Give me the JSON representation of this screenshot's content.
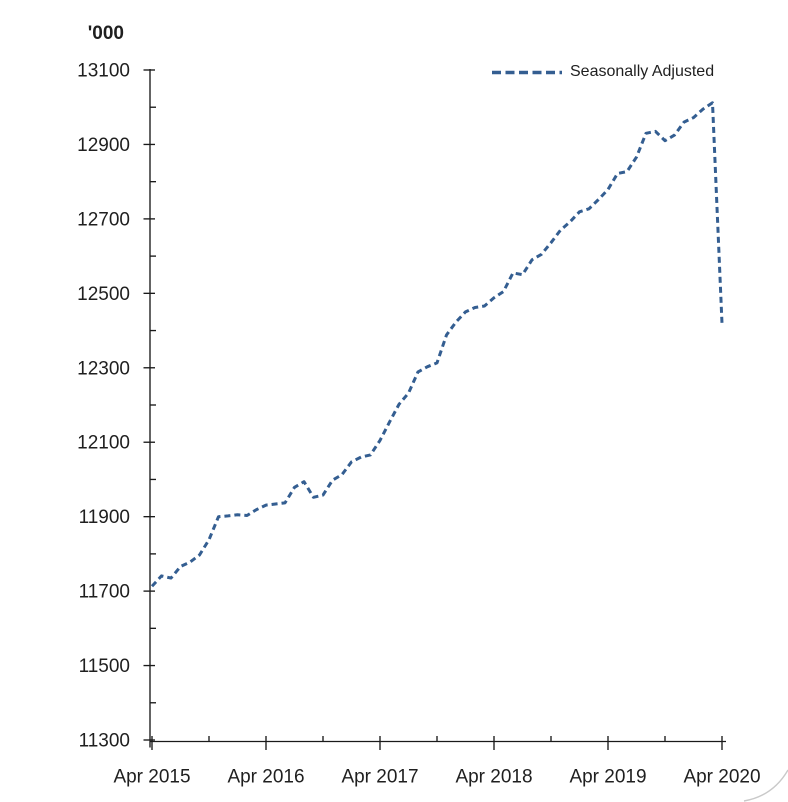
{
  "page": {
    "background": "#ffffff"
  },
  "style": {
    "series_color": "#345E91",
    "axis_color": "#1a1a1a",
    "text_color": "#1f1f1f",
    "corner_artifact_color": "#c9c9c9"
  },
  "chart_data": {
    "type": "line",
    "title": "",
    "unit_label": "'000",
    "xlabel": "",
    "ylabel": "'000",
    "ylim": [
      11300,
      13100
    ],
    "y_major_step": 200,
    "y_minor_step": 100,
    "y_tick_labels": [
      "11300",
      "11500",
      "11700",
      "11900",
      "12100",
      "12300",
      "12500",
      "12700",
      "12900",
      "13100"
    ],
    "x_tick_labels": [
      "Apr 2015",
      "Apr 2016",
      "Apr 2017",
      "Apr 2018",
      "Apr 2019",
      "Apr 2020"
    ],
    "x_major_indices": [
      0,
      12,
      24,
      36,
      48,
      60
    ],
    "x_minor_indices": [
      6,
      18,
      30,
      42,
      54
    ],
    "grid": false,
    "legend_position": "top-right",
    "series": [
      {
        "name": "Seasonally Adjusted",
        "color": "#345E91",
        "dash": true,
        "x": [
          "Apr 2015",
          "May 2015",
          "Jun 2015",
          "Jul 2015",
          "Aug 2015",
          "Sep 2015",
          "Oct 2015",
          "Nov 2015",
          "Dec 2015",
          "Jan 2016",
          "Feb 2016",
          "Mar 2016",
          "Apr 2016",
          "May 2016",
          "Jun 2016",
          "Jul 2016",
          "Aug 2016",
          "Sep 2016",
          "Oct 2016",
          "Nov 2016",
          "Dec 2016",
          "Jan 2017",
          "Feb 2017",
          "Mar 2017",
          "Apr 2017",
          "May 2017",
          "Jun 2017",
          "Jul 2017",
          "Aug 2017",
          "Sep 2017",
          "Oct 2017",
          "Nov 2017",
          "Dec 2017",
          "Jan 2018",
          "Feb 2018",
          "Mar 2018",
          "Apr 2018",
          "May 2018",
          "Jun 2018",
          "Jul 2018",
          "Aug 2018",
          "Sep 2018",
          "Oct 2018",
          "Nov 2018",
          "Dec 2018",
          "Jan 2019",
          "Feb 2019",
          "Mar 2019",
          "Apr 2019",
          "May 2019",
          "Jun 2019",
          "Jul 2019",
          "Aug 2019",
          "Sep 2019",
          "Oct 2019",
          "Nov 2019",
          "Dec 2019",
          "Jan 2020",
          "Feb 2020",
          "Mar 2020",
          "Apr 2020"
        ],
        "values": [
          11713,
          11741,
          11735,
          11766,
          11778,
          11797,
          11838,
          11900,
          11902,
          11905,
          11903,
          11919,
          11931,
          11934,
          11937,
          11979,
          11994,
          11952,
          11958,
          11998,
          12013,
          12047,
          12060,
          12066,
          12105,
          12154,
          12202,
          12232,
          12289,
          12303,
          12313,
          12388,
          12423,
          12450,
          12462,
          12466,
          12488,
          12505,
          12555,
          12550,
          12590,
          12605,
          12636,
          12670,
          12692,
          12719,
          12727,
          12752,
          12779,
          12822,
          12827,
          12866,
          12930,
          12935,
          12910,
          12925,
          12960,
          12972,
          12995,
          13012,
          12419
        ]
      }
    ]
  }
}
